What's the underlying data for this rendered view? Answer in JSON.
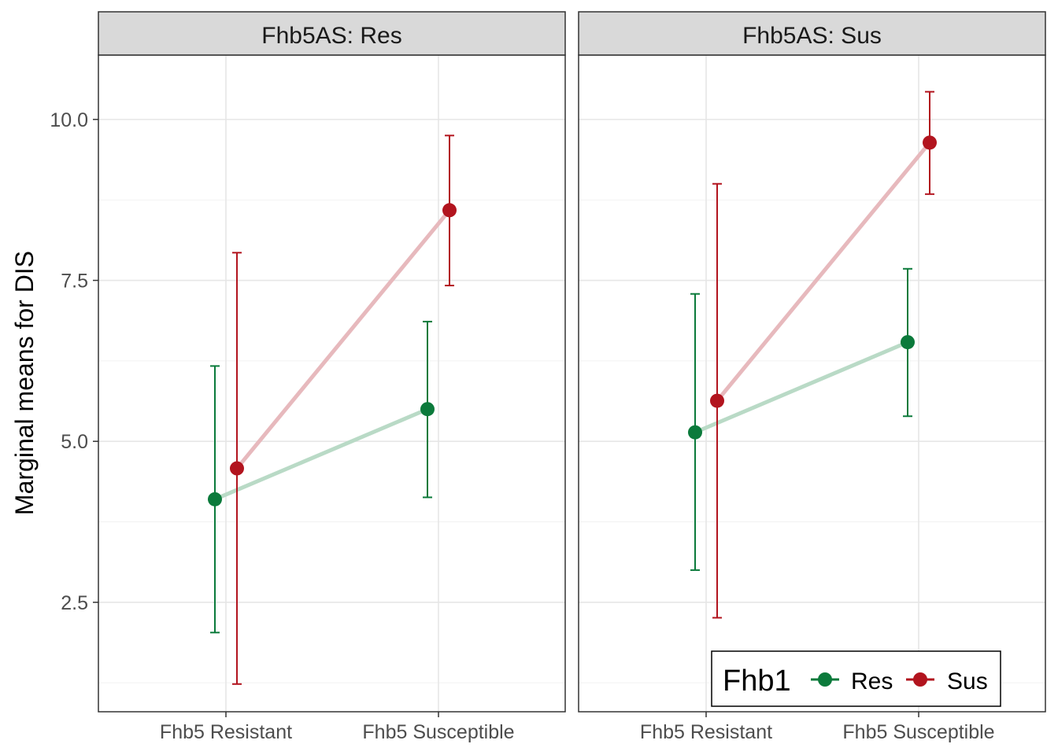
{
  "chart_data": {
    "type": "line",
    "ylabel": "Marginal means for DIS",
    "ylim": [
      0.8,
      11.0
    ],
    "yticks": [
      2.5,
      5.0,
      7.5,
      10.0
    ],
    "ytick_labels": [
      "2.5",
      "5.0",
      "7.5",
      "10.0"
    ],
    "categories": [
      "Fhb5 Resistant",
      "Fhb5 Susceptible"
    ],
    "grid": true,
    "legend": {
      "title": "Fhb1",
      "position": "bottom-right",
      "entries": [
        "Res",
        "Sus"
      ]
    },
    "colors": {
      "Res": "#0b7a3b",
      "Sus": "#b2141e",
      "Res_line": "#b9dac6",
      "Sus_line": "#e7b9bd"
    },
    "panels": [
      {
        "title": "Fhb5AS: Res",
        "series": [
          {
            "name": "Res",
            "values": [
              4.1,
              5.5
            ],
            "lower": [
              2.03,
              4.13
            ],
            "upper": [
              6.17,
              6.86
            ]
          },
          {
            "name": "Sus",
            "values": [
              4.58,
              8.59
            ],
            "lower": [
              1.23,
              7.42
            ],
            "upper": [
              7.93,
              9.75
            ]
          }
        ]
      },
      {
        "title": "Fhb5AS: Sus",
        "series": [
          {
            "name": "Res",
            "values": [
              5.14,
              6.54
            ],
            "lower": [
              3.0,
              5.39
            ],
            "upper": [
              7.29,
              7.68
            ]
          },
          {
            "name": "Sus",
            "values": [
              5.63,
              9.64
            ],
            "lower": [
              2.26,
              8.84
            ],
            "upper": [
              9.0,
              10.43
            ]
          }
        ]
      }
    ]
  }
}
